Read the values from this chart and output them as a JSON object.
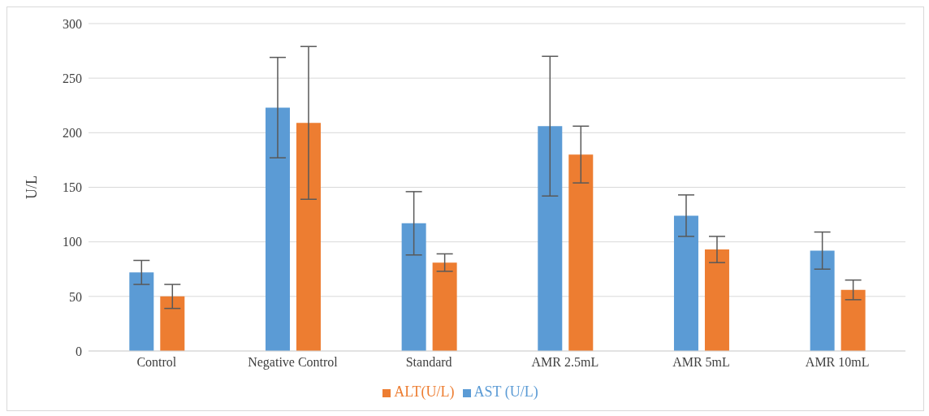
{
  "chart_data": {
    "type": "bar",
    "ylabel": "U/L",
    "categories": [
      "Control",
      "Negative Control",
      "Standard",
      "AMR 2.5mL",
      "AMR 5mL",
      "AMR 10mL"
    ],
    "series": [
      {
        "name": "AST (U/L)",
        "color": "#5b9bd5",
        "values": [
          72,
          223,
          117,
          206,
          124,
          92
        ],
        "errors": [
          11,
          46,
          29,
          64,
          19,
          17
        ]
      },
      {
        "name": "ALT(U/L)",
        "color": "#ed7d31",
        "values": [
          50,
          209,
          81,
          180,
          93,
          56
        ],
        "errors": [
          11,
          70,
          8,
          26,
          12,
          9
        ]
      }
    ],
    "ylim": [
      0,
      300
    ],
    "yticks": [
      0,
      50,
      100,
      150,
      200,
      250,
      300
    ],
    "grid": "y",
    "legend": "bottom"
  }
}
